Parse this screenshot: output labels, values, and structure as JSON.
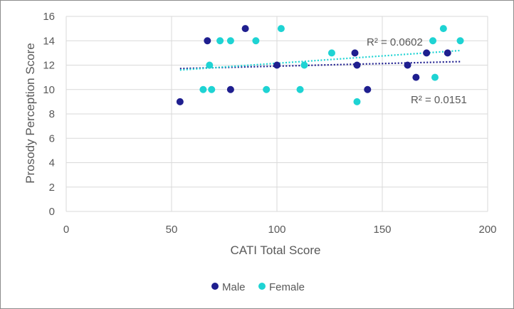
{
  "chart_data": {
    "type": "scatter",
    "xlabel": "CATI Total Score",
    "ylabel": "Prosody Perception Score",
    "xlim": [
      0,
      200
    ],
    "ylim": [
      0,
      16
    ],
    "xticks": [
      0,
      50,
      100,
      150,
      200
    ],
    "yticks": [
      0,
      2,
      4,
      6,
      8,
      10,
      12,
      14,
      16
    ],
    "grid": true,
    "legend_position": "bottom",
    "series": [
      {
        "name": "Male",
        "color": "#1f1f8f",
        "points": [
          [
            54,
            9
          ],
          [
            67,
            14
          ],
          [
            78,
            10
          ],
          [
            85,
            15
          ],
          [
            100,
            12
          ],
          [
            137,
            13
          ],
          [
            138,
            12
          ],
          [
            143,
            10
          ],
          [
            162,
            12
          ],
          [
            166,
            11
          ],
          [
            171,
            13
          ],
          [
            181,
            13
          ]
        ],
        "trendline": {
          "x": [
            54,
            187
          ],
          "y": [
            11.72,
            12.29
          ]
        },
        "r_squared_label": "R² = 0.0151"
      },
      {
        "name": "Female",
        "color": "#1ed3d3",
        "points": [
          [
            65,
            10
          ],
          [
            68,
            12
          ],
          [
            69,
            10
          ],
          [
            73,
            14
          ],
          [
            78,
            14
          ],
          [
            90,
            14
          ],
          [
            95,
            10
          ],
          [
            102,
            15
          ],
          [
            111,
            10
          ],
          [
            113,
            12
          ],
          [
            126,
            13
          ],
          [
            138,
            9
          ],
          [
            174,
            14
          ],
          [
            175,
            11
          ],
          [
            179,
            15
          ],
          [
            187,
            14
          ]
        ],
        "trendline": {
          "x": [
            54,
            187
          ],
          "y": [
            11.6,
            13.2
          ]
        },
        "r_squared_label": "R² = 0.0602"
      }
    ]
  }
}
